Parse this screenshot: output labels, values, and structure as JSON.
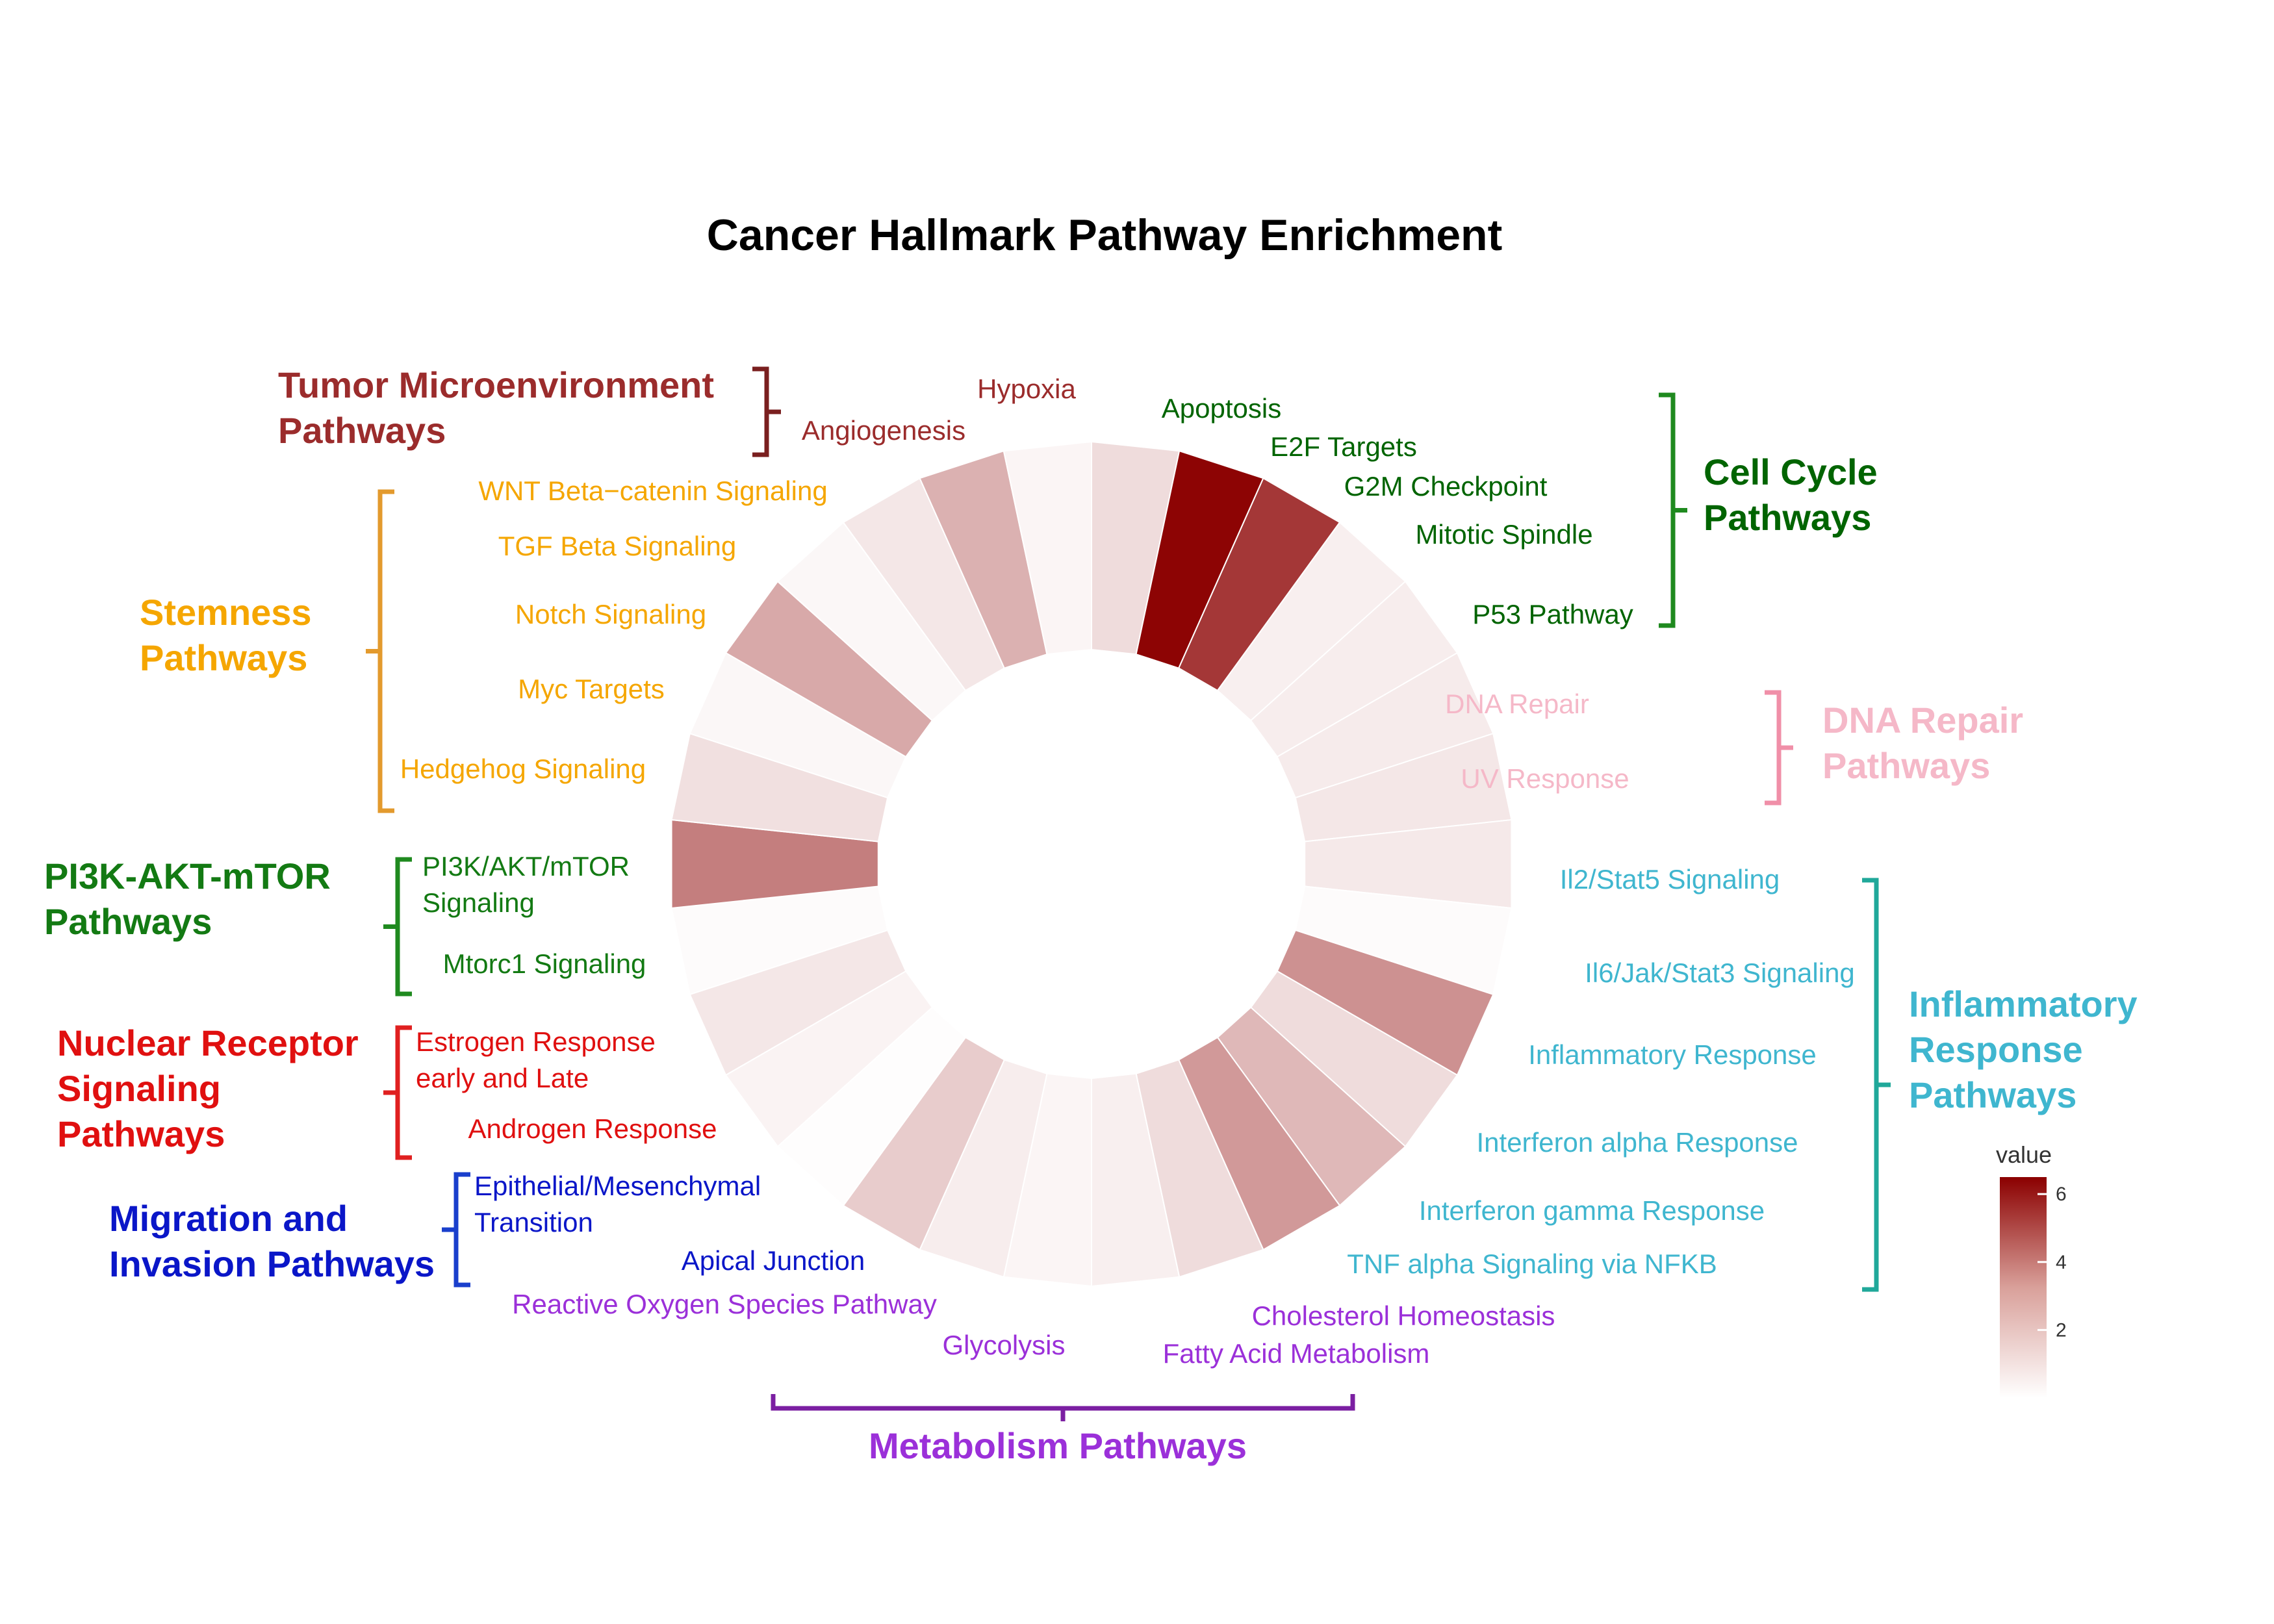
{
  "chart_data": {
    "type": "radial-heatmap",
    "title": "Cancer Hallmark Pathway Enrichment",
    "value_range": [
      0,
      6.5
    ],
    "legend": {
      "title": "value",
      "ticks": [
        2,
        4,
        6
      ],
      "placement": "bottom-right",
      "color_low": "#ffffff",
      "color_high": "#8b0000"
    },
    "segments": [
      {
        "name": "Hypoxia",
        "label_lines": [
          "Hypoxia"
        ],
        "value": 0.9,
        "group": "tme"
      },
      {
        "name": "Apoptosis",
        "label_lines": [
          "Apoptosis"
        ],
        "value": 6.4,
        "group": "cellcycle"
      },
      {
        "name": "E2F Targets",
        "label_lines": [
          "E2F Targets"
        ],
        "value": 5.1,
        "group": "cellcycle"
      },
      {
        "name": "G2M Checkpoint",
        "label_lines": [
          "G2M Checkpoint"
        ],
        "value": 0.4,
        "group": "cellcycle"
      },
      {
        "name": "Mitotic Spindle",
        "label_lines": [
          "Mitotic Spindle"
        ],
        "value": 0.45,
        "group": "cellcycle"
      },
      {
        "name": "P53 Pathway",
        "label_lines": [
          "P53 Pathway"
        ],
        "value": 0.5,
        "group": "cellcycle"
      },
      {
        "name": "DNA Repair",
        "label_lines": [
          "DNA Repair"
        ],
        "value": 0.6,
        "group": "dnarepair"
      },
      {
        "name": "UV Response",
        "label_lines": [
          "UV Response"
        ],
        "value": 0.55,
        "group": "dnarepair"
      },
      {
        "name": "Il2/Stat5 Signaling",
        "label_lines": [
          "Il2/Stat5 Signaling"
        ],
        "value": 0.1,
        "group": "inflammatory"
      },
      {
        "name": "Il6/Jak/Stat3 Signaling",
        "label_lines": [
          "Il6/Jak/Stat3 Signaling"
        ],
        "value": 2.8,
        "group": "inflammatory"
      },
      {
        "name": "Inflammatory Response",
        "label_lines": [
          "Inflammatory Response"
        ],
        "value": 0.9,
        "group": "inflammatory"
      },
      {
        "name": "Interferon alpha Response",
        "label_lines": [
          "Interferon alpha Response"
        ],
        "value": 1.8,
        "group": "inflammatory"
      },
      {
        "name": "Interferon gamma Response",
        "label_lines": [
          "Interferon gamma Response"
        ],
        "value": 2.6,
        "group": "inflammatory"
      },
      {
        "name": "TNF alpha Signaling via NFKB",
        "label_lines": [
          "TNF alpha Signaling via NFKB"
        ],
        "value": 0.9,
        "group": "inflammatory"
      },
      {
        "name": "Cholesterol Homeostasis",
        "label_lines": [
          "Cholesterol Homeostasis"
        ],
        "value": 0.4,
        "group": "metabolism"
      },
      {
        "name": "Fatty Acid Metabolism",
        "label_lines": [
          "Fatty Acid Metabolism"
        ],
        "value": 0.25,
        "group": "metabolism"
      },
      {
        "name": "Glycolysis",
        "label_lines": [
          "Glycolysis"
        ],
        "value": 0.45,
        "group": "metabolism"
      },
      {
        "name": "Reactive Oxygen Species Pathway",
        "label_lines": [
          "Reactive Oxygen Species Pathway"
        ],
        "value": 1.3,
        "group": "metabolism"
      },
      {
        "name": "Apical Junction",
        "label_lines": [
          "Apical Junction"
        ],
        "value": 0.05,
        "group": "migration"
      },
      {
        "name": "Epithelial/Mesenchymal Transition",
        "label_lines": [
          "Epithelial/Mesenchymal",
          "Transition"
        ],
        "value": 0.3,
        "group": "migration"
      },
      {
        "name": "Androgen Response",
        "label_lines": [
          "Androgen Response"
        ],
        "value": 0.6,
        "group": "nuclear"
      },
      {
        "name": "Estrogen Response early and Late",
        "label_lines": [
          "Estrogen Response",
          "early and Late"
        ],
        "value": 0.1,
        "group": "nuclear"
      },
      {
        "name": "Mtorc1 Signaling",
        "label_lines": [
          "Mtorc1 Signaling"
        ],
        "value": 3.3,
        "group": "pi3k"
      },
      {
        "name": "PI3K/AKT/mTOR Signaling",
        "label_lines": [
          "PI3K/AKT/mTOR",
          "Signaling"
        ],
        "value": 0.8,
        "group": "pi3k"
      },
      {
        "name": "Hedgehog Signaling",
        "label_lines": [
          "Hedgehog Signaling"
        ],
        "value": 0.2,
        "group": "stemness"
      },
      {
        "name": "Myc Targets",
        "label_lines": [
          "Myc Targets"
        ],
        "value": 2.2,
        "group": "stemness"
      },
      {
        "name": "Notch Signaling",
        "label_lines": [
          "Notch Signaling"
        ],
        "value": 0.2,
        "group": "stemness"
      },
      {
        "name": "TGF Beta Signaling",
        "label_lines": [
          "TGF Beta Signaling"
        ],
        "value": 0.6,
        "group": "stemness"
      },
      {
        "name": "WNT Beta-catenin Signaling",
        "label_lines": [
          "WNT Beta−catenin Signaling"
        ],
        "value": 2.0,
        "group": "stemness"
      },
      {
        "name": "Angiogenesis",
        "label_lines": [
          "Angiogenesis"
        ],
        "value": 0.25,
        "group": "tme"
      }
    ],
    "groups": {
      "tme": {
        "label_lines": [
          "Tumor Microenvironment",
          "Pathways"
        ],
        "color": "#9b2c2c",
        "bracket_color": "#7a1f1f"
      },
      "cellcycle": {
        "label_lines": [
          "Cell Cycle",
          "Pathways"
        ],
        "color": "#006400",
        "bracket_color": "#1f8a1f"
      },
      "dnarepair": {
        "label_lines": [
          "DNA Repair",
          "Pathways"
        ],
        "color": "#f5b8c8",
        "bracket_color": "#f08fa8"
      },
      "inflammatory": {
        "label_lines": [
          "Inflammatory",
          "Response",
          "Pathways"
        ],
        "color": "#3fb6cf",
        "bracket_color": "#20a89a"
      },
      "metabolism": {
        "label_lines": [
          "Metabolism Pathways"
        ],
        "color": "#9b30d9",
        "bracket_color": "#7b1fa2"
      },
      "migration": {
        "label_lines": [
          "Migration and",
          "Invasion Pathways"
        ],
        "color": "#0a16c8",
        "bracket_color": "#1a3fcc"
      },
      "nuclear": {
        "label_lines": [
          "Nuclear Receptor",
          "Signaling",
          "Pathways"
        ],
        "color": "#e01010",
        "bracket_color": "#e02020"
      },
      "pi3k": {
        "label_lines": [
          "PI3K-AKT-mTOR",
          "Pathways"
        ],
        "color": "#137a13",
        "bracket_color": "#1f8a1f"
      },
      "stemness": {
        "label_lines": [
          "Stemness",
          "Pathways"
        ],
        "color": "#f5a600",
        "bracket_color": "#e39a2d"
      }
    }
  }
}
